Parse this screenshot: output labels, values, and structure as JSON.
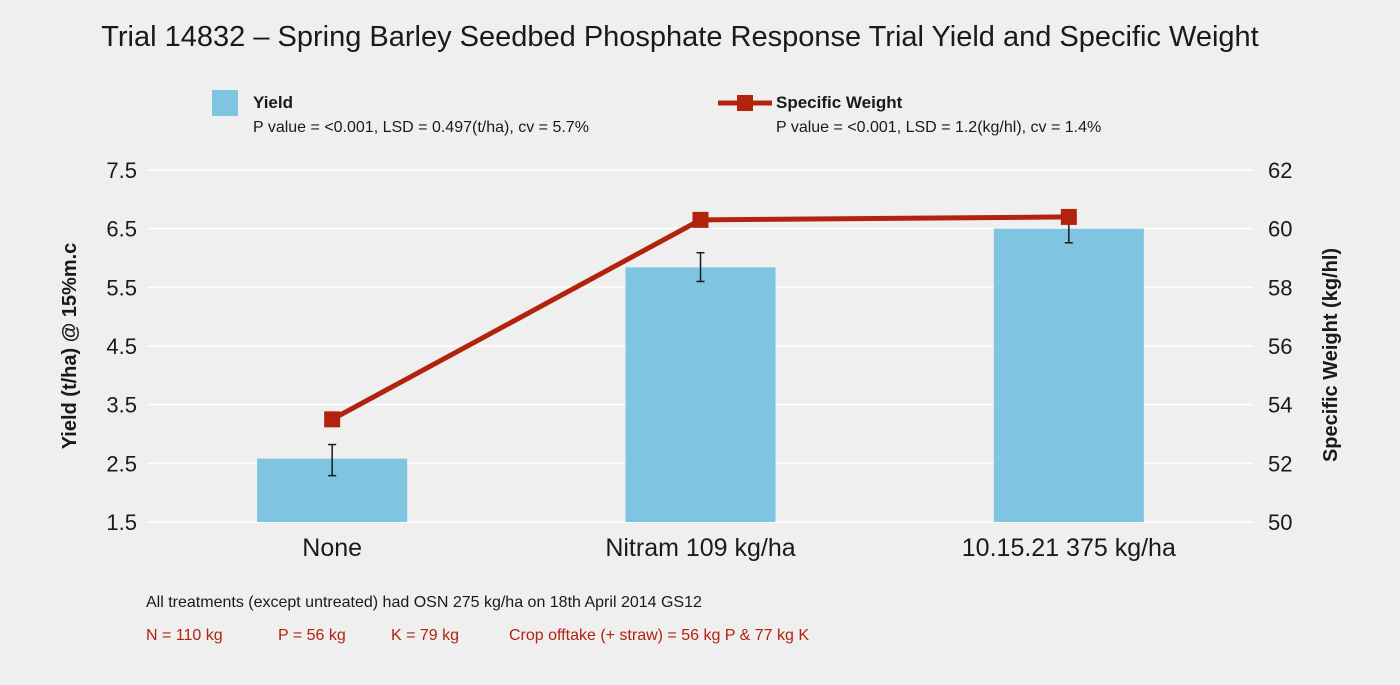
{
  "chart_data": {
    "type": "bar",
    "title": "Trial 14832 – Spring Barley Seedbed Phosphate Response Trial Yield and Specific Weight",
    "categories": [
      "None",
      "Nitram 109 kg/ha",
      "10.15.21 375 kg/ha"
    ],
    "ylabel": "Yield (t/ha) @ 15%m.c",
    "y2label": "Specific Weight (kg/hl)",
    "ylim": [
      1.5,
      7.5
    ],
    "yticks": [
      "1.5",
      "2.5",
      "3.5",
      "4.5",
      "5.5",
      "6.5",
      "7.5"
    ],
    "y2lim": [
      50,
      62
    ],
    "y2ticks": [
      "50",
      "52",
      "54",
      "56",
      "58",
      "60",
      "62"
    ],
    "grid": true,
    "legend_position": "top",
    "series": [
      {
        "name": "Yield",
        "kind": "bar",
        "axis": "left",
        "color": "#7fc4e1",
        "values": [
          2.58,
          5.84,
          6.5
        ],
        "error_bars": [
          [
            2.29,
            2.82
          ],
          [
            5.6,
            6.09
          ],
          [
            6.26,
            6.72
          ]
        ],
        "stats": "P value = <0.001, LSD = 0.497(t/ha), cv = 5.7%"
      },
      {
        "name": "Specific Weight",
        "kind": "line",
        "axis": "right",
        "color": "#b2230e",
        "values": [
          53.5,
          60.3,
          60.4
        ],
        "stats": "P value = <0.001, LSD = 1.2(kg/hl), cv = 1.4%"
      }
    ]
  },
  "footnotes": {
    "line1": "All treatments (except untreated) had OSN 275 kg/ha on 18th April 2014 GS12",
    "n": "N = 110 kg",
    "p": "P = 56 kg",
    "k": "K = 79 kg",
    "offtake": "Crop offtake (+ straw) = 56 kg P & 77 kg K"
  }
}
